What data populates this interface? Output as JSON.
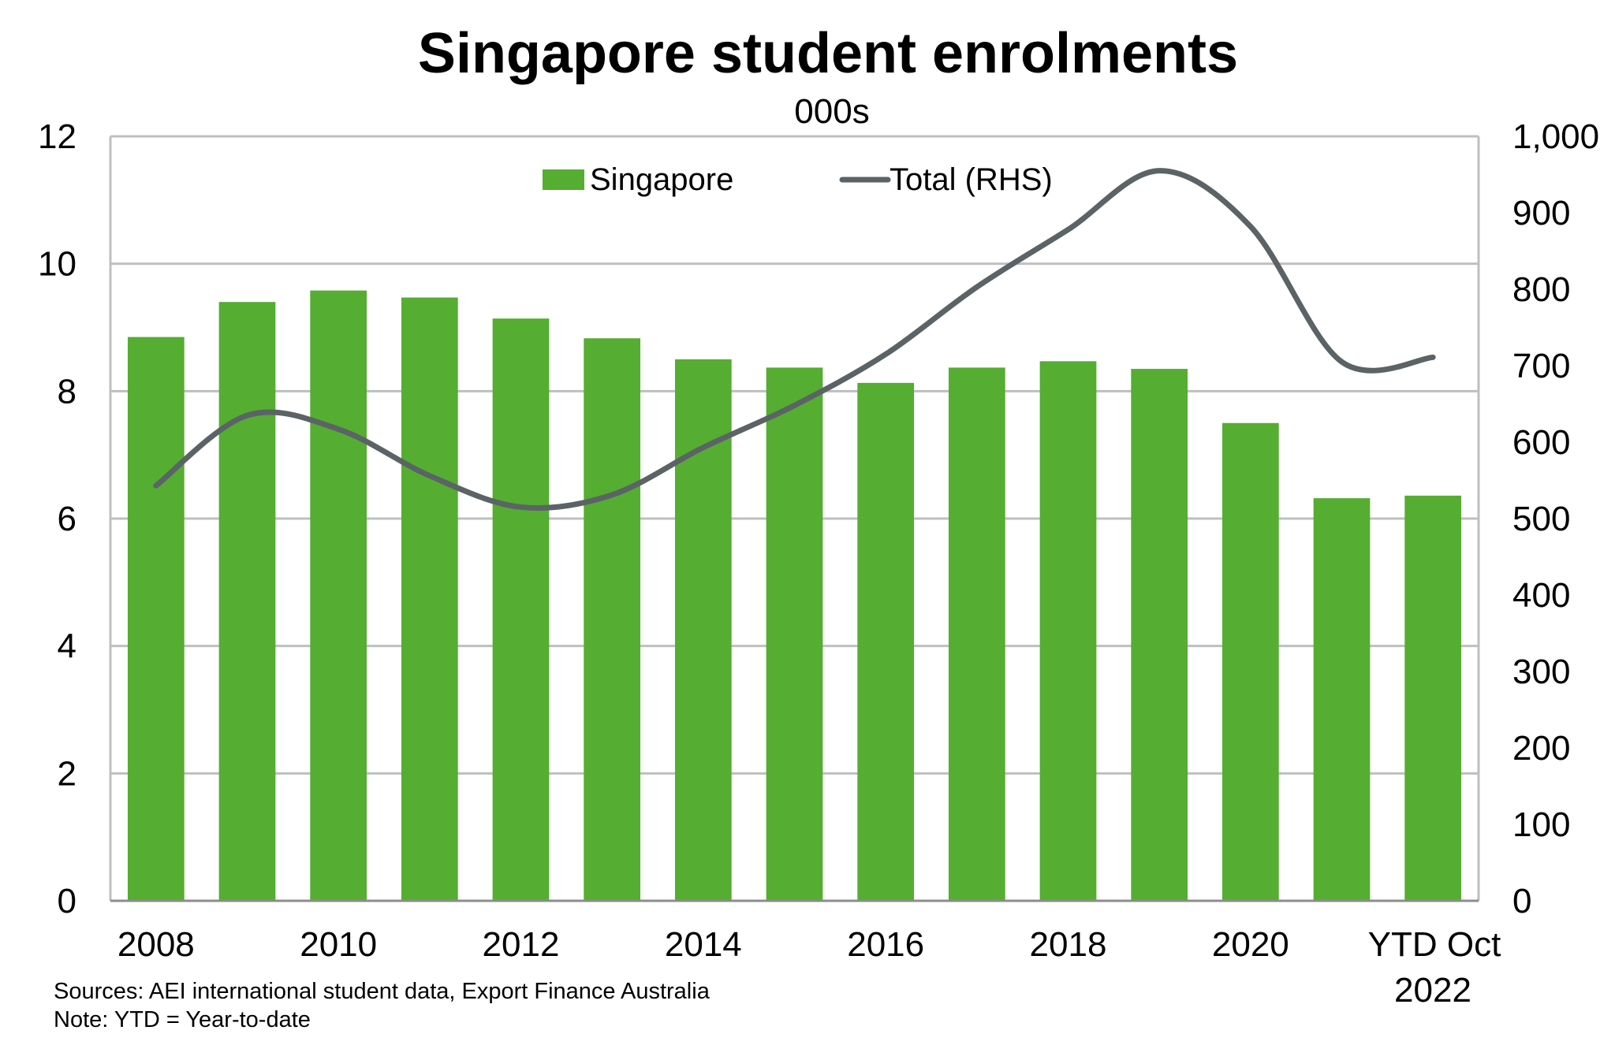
{
  "chart_data": {
    "type": "bar",
    "title": "Singapore student enrolments",
    "subtitle": "000s",
    "categories": [
      "2008",
      "2009",
      "2010",
      "2011",
      "2012",
      "2013",
      "2014",
      "2015",
      "2016",
      "2017",
      "2018",
      "2019",
      "2020",
      "2021",
      "YTD Oct 2022"
    ],
    "x_tick_labels": [
      "2008",
      "2010",
      "2012",
      "2014",
      "2016",
      "2018",
      "2020"
    ],
    "x_tick_last": [
      "YTD Oct",
      "2022"
    ],
    "series": [
      {
        "name": "Singapore",
        "type": "bar",
        "axis": "left",
        "color": "#55ad31",
        "values": [
          8.85,
          9.4,
          9.58,
          9.47,
          9.14,
          8.83,
          8.5,
          8.37,
          8.13,
          8.37,
          8.47,
          8.35,
          7.5,
          6.32,
          6.36
        ]
      },
      {
        "name": "Total (RHS)",
        "type": "line",
        "axis": "right",
        "color": "#5b6367",
        "values": [
          543,
          635,
          617,
          556,
          515,
          531,
          593,
          648,
          715,
          803,
          878,
          955,
          882,
          705,
          711
        ]
      }
    ],
    "y_left": {
      "min": 0,
      "max": 12,
      "step": 2,
      "tick_labels": [
        "0",
        "2",
        "4",
        "6",
        "8",
        "10",
        "12"
      ]
    },
    "y_right": {
      "min": 0,
      "max": 1000,
      "step": 100,
      "tick_labels": [
        "0",
        "100",
        "200",
        "300",
        "400",
        "500",
        "600",
        "700",
        "800",
        "900",
        "1,000"
      ]
    },
    "grid": true,
    "legend_position": "top-center"
  },
  "footnotes": {
    "sources": "Sources: AEI international student data, Export Finance Australia",
    "note": "Note: YTD = Year-to-date"
  }
}
